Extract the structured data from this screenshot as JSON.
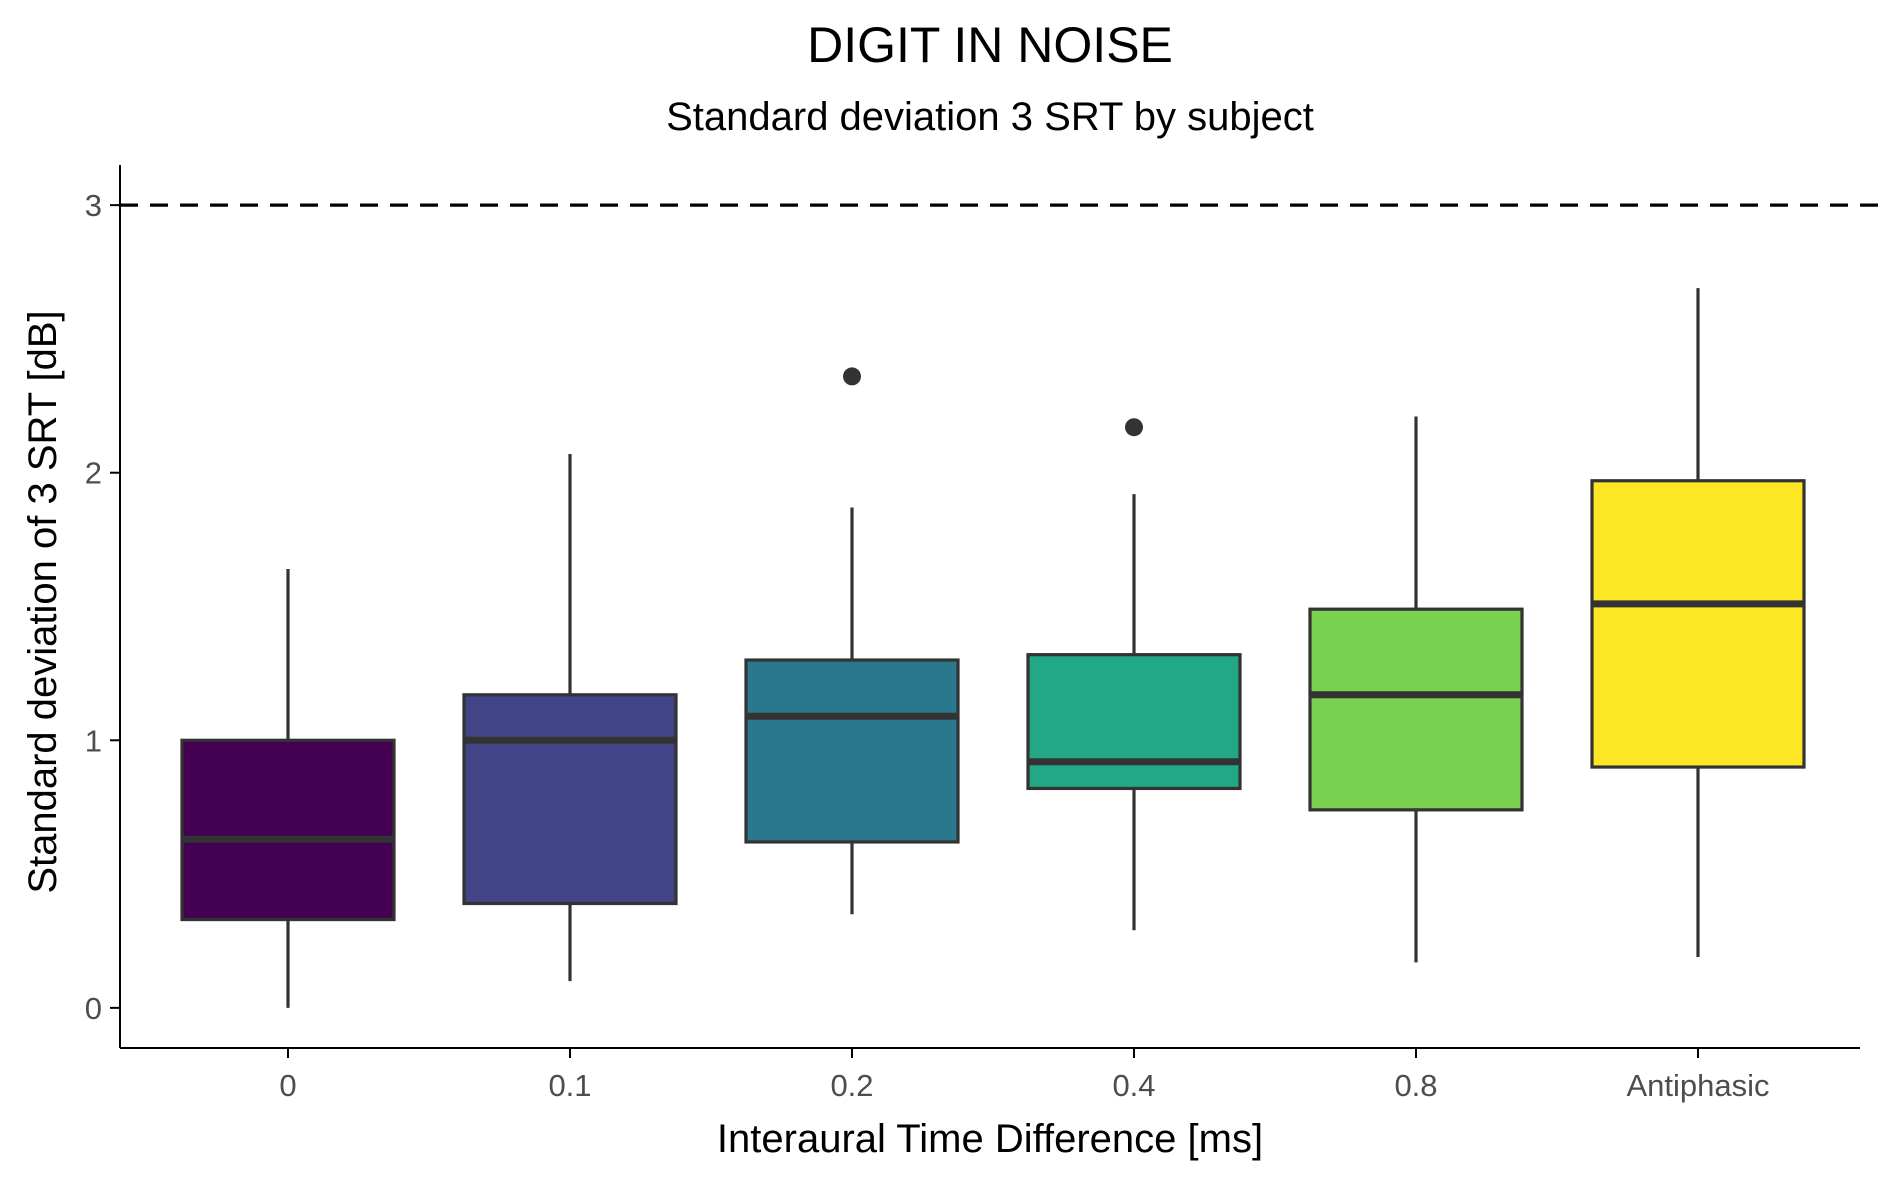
{
  "chart_data": {
    "type": "boxplot",
    "title": "DIGIT IN NOISE",
    "subtitle": "Standard deviation 3 SRT by subject",
    "xlabel": "Interaural Time Difference [ms]",
    "ylabel": "Standard deviation of 3 SRT [dB]",
    "ylim": [
      -0.15,
      3.15
    ],
    "yticks": [
      0,
      1,
      2,
      3
    ],
    "reference_line": {
      "y": 3,
      "style": "dashed",
      "color": "#000000"
    },
    "grid": false,
    "legend": "none",
    "categories": [
      "0",
      "0.1",
      "0.2",
      "0.4",
      "0.8",
      "Antiphasic"
    ],
    "boxes": [
      {
        "category": "0",
        "min": 0.0,
        "q1": 0.33,
        "median": 0.63,
        "q3": 1.0,
        "max": 1.64,
        "outliers": [],
        "color": "#440154"
      },
      {
        "category": "0.1",
        "min": 0.1,
        "q1": 0.39,
        "median": 1.0,
        "q3": 1.17,
        "max": 2.07,
        "outliers": [],
        "color": "#414487"
      },
      {
        "category": "0.2",
        "min": 0.35,
        "q1": 0.62,
        "median": 1.09,
        "q3": 1.3,
        "max": 1.87,
        "outliers": [
          2.36
        ],
        "color": "#2a788e"
      },
      {
        "category": "0.4",
        "min": 0.29,
        "q1": 0.82,
        "median": 0.92,
        "q3": 1.32,
        "max": 1.92,
        "outliers": [
          2.17
        ],
        "color": "#22a884"
      },
      {
        "category": "0.8",
        "min": 0.17,
        "q1": 0.74,
        "median": 1.17,
        "q3": 1.49,
        "max": 2.21,
        "outliers": [],
        "color": "#7ad151"
      },
      {
        "category": "Antiphasic",
        "min": 0.19,
        "q1": 0.9,
        "median": 1.51,
        "q3": 1.97,
        "max": 2.69,
        "outliers": [],
        "color": "#fde725"
      }
    ],
    "outline_color": "#333333",
    "axis_color": "#000000",
    "tick_label_color": "#4d4d4d"
  }
}
